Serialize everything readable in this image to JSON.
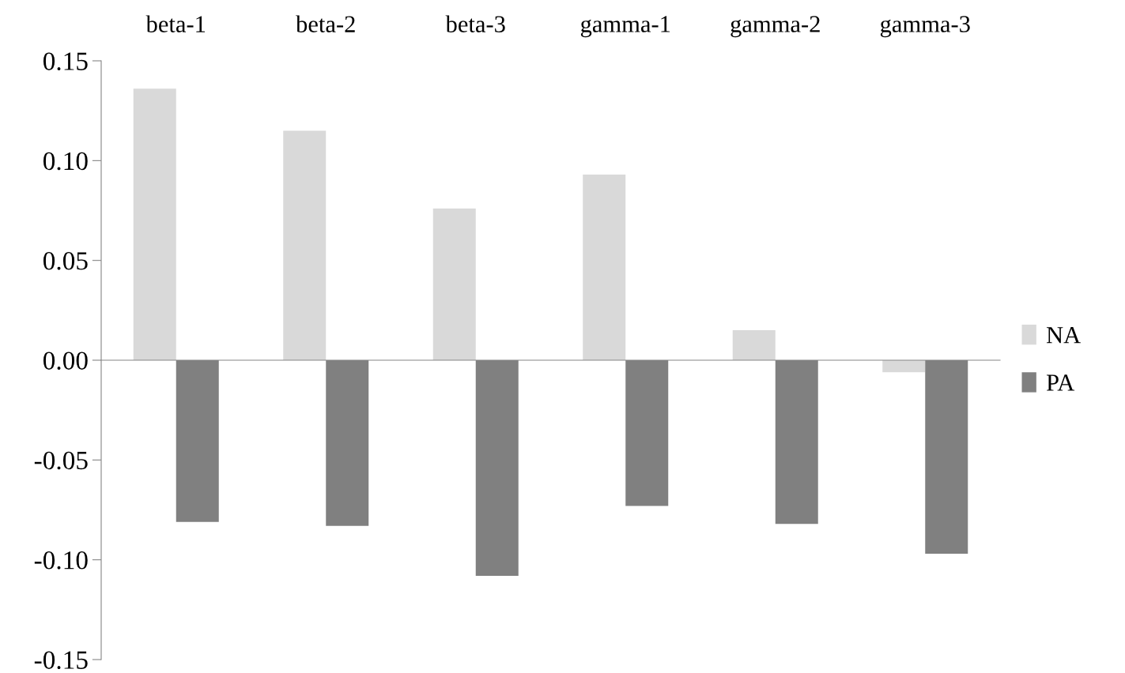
{
  "chart_data": {
    "type": "bar",
    "categories": [
      "beta-1",
      "beta-2",
      "beta-3",
      "gamma-1",
      "gamma-2",
      "gamma-3"
    ],
    "series": [
      {
        "name": "NA",
        "color": "#d9d9d9",
        "values": [
          0.136,
          0.115,
          0.076,
          0.093,
          0.015,
          -0.006
        ]
      },
      {
        "name": "PA",
        "color": "#808080",
        "values": [
          -0.081,
          -0.083,
          -0.108,
          -0.073,
          -0.082,
          -0.097
        ]
      }
    ],
    "ylim": [
      -0.15,
      0.15
    ],
    "yticks": [
      {
        "value": -0.15,
        "label": "-0.15"
      },
      {
        "value": -0.1,
        "label": "-0.10"
      },
      {
        "value": -0.05,
        "label": "-0.05"
      },
      {
        "value": 0,
        "label": "0.00"
      },
      {
        "value": 0.05,
        "label": "0.05"
      },
      {
        "value": 0.1,
        "label": "0.10"
      },
      {
        "value": 0.15,
        "label": "0.15"
      }
    ],
    "legend": "right"
  }
}
